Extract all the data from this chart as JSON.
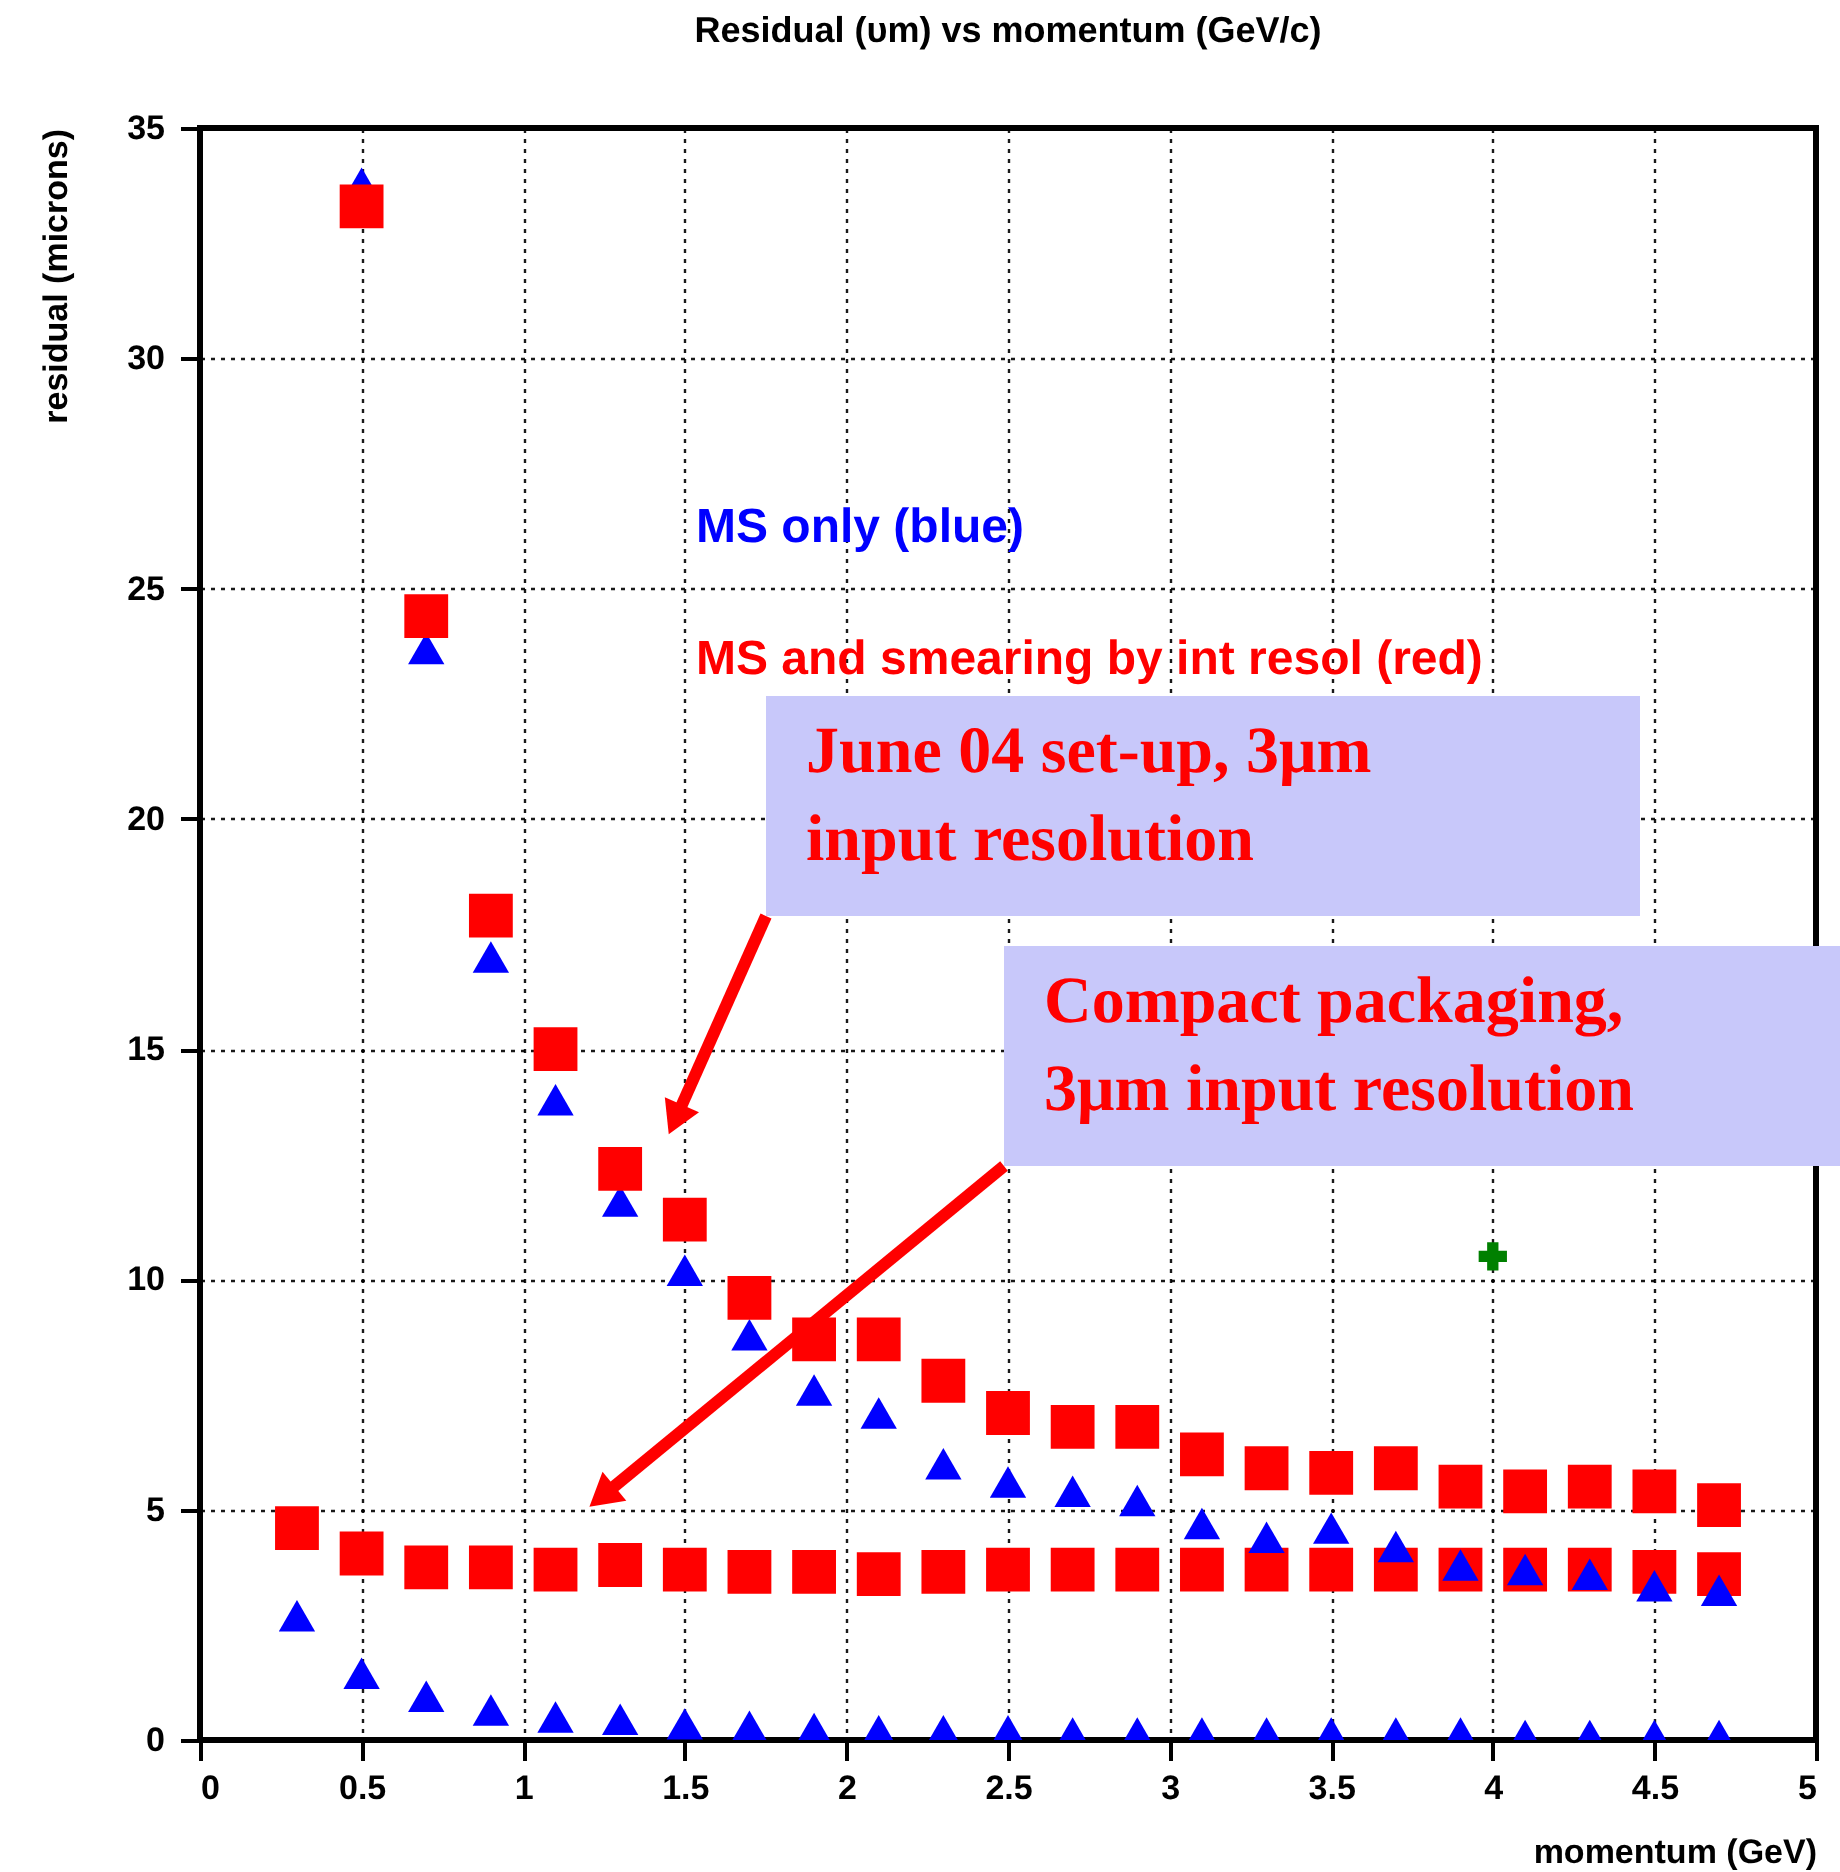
{
  "chart_data": {
    "type": "scatter",
    "title": "Residual (υm) vs momentum (GeV/c)",
    "xlabel": "momentum (GeV)",
    "ylabel": "residual (microns)",
    "xlim": [
      0,
      5
    ],
    "xticks": [
      0,
      0.5,
      1,
      1.5,
      2,
      2.5,
      3,
      3.5,
      4,
      4.5,
      5
    ],
    "ylim": [
      0,
      35
    ],
    "yticks": [
      0,
      5,
      10,
      15,
      20,
      25,
      30,
      35
    ],
    "grid": true,
    "series": [
      {
        "color": "#ff0000",
        "marker": "square",
        "x": [
          0.3,
          0.5,
          0.7,
          0.9,
          1.1,
          1.3,
          1.5,
          1.7,
          1.9,
          2.1,
          2.3,
          2.5,
          2.7,
          2.9,
          3.1,
          3.3,
          3.5,
          3.7,
          3.9,
          4.1,
          4.3,
          4.5,
          4.7
        ],
        "values": [
          4.6,
          4.05,
          3.75,
          3.75,
          3.7,
          3.8,
          3.7,
          3.65,
          3.65,
          3.6,
          3.65,
          3.7,
          3.7,
          3.7,
          3.7,
          3.7,
          3.7,
          3.7,
          3.7,
          3.7,
          3.7,
          3.65,
          3.6
        ]
      },
      {
        "color": "#0000ff",
        "marker": "triangle",
        "x": [
          0.5,
          0.7,
          0.9,
          1.1,
          1.3,
          1.5,
          1.7,
          1.9,
          2.1,
          2.3,
          2.5,
          2.7,
          2.9,
          3.1,
          3.3,
          3.5,
          3.7,
          3.9,
          4.1,
          4.3,
          4.5,
          4.7
        ],
        "values": [
          33.8,
          23.7,
          17.0,
          13.9,
          11.7,
          10.2,
          8.8,
          7.6,
          7.1,
          6.0,
          5.6,
          5.4,
          5.2,
          4.7,
          4.4,
          4.6,
          4.2,
          3.8,
          3.7,
          3.6,
          3.35,
          3.25
        ]
      },
      {
        "color": "#ff0000",
        "marker": "square",
        "x": [
          0.5,
          0.7,
          0.9,
          1.1,
          1.3,
          1.5,
          1.7,
          1.9,
          2.1,
          2.3,
          2.5,
          2.7,
          2.9,
          3.1,
          3.3,
          3.5,
          3.7,
          3.9,
          4.1,
          4.3,
          4.5,
          4.7
        ],
        "values": [
          33.3,
          24.4,
          17.9,
          15.0,
          12.4,
          11.3,
          9.6,
          8.7,
          8.7,
          7.8,
          7.1,
          6.8,
          6.8,
          6.2,
          5.9,
          5.8,
          5.9,
          5.5,
          5.4,
          5.5,
          5.4,
          5.1
        ]
      },
      {
        "color": "#0000ff",
        "marker": "triangle",
        "x": [
          0.3,
          0.5,
          0.7,
          0.9,
          1.1,
          1.3,
          1.5,
          1.7,
          1.9,
          2.1,
          2.3,
          2.5,
          2.7,
          2.9,
          3.1,
          3.3,
          3.5,
          3.7,
          3.9,
          4.1,
          4.3,
          4.5,
          4.7
        ],
        "values": [
          2.7,
          1.45,
          0.95,
          0.65,
          0.5,
          0.45,
          0.35,
          0.3,
          0.25,
          0.2,
          0.2,
          0.2,
          0.15,
          0.15,
          0.15,
          0.15,
          0.15,
          0.15,
          0.15,
          0.1,
          0.1,
          0.1,
          0.1
        ]
      },
      {
        "color": "#008000",
        "marker": "cross",
        "x": [
          4.0
        ],
        "values": [
          10.5
        ]
      }
    ],
    "annotations": [
      "MS only (blue)",
      "MS and smearing by int resol (red)",
      "June 04 set-up, 3μm\ninput resolution",
      "Compact packaging,\n3μm input resolution"
    ]
  }
}
